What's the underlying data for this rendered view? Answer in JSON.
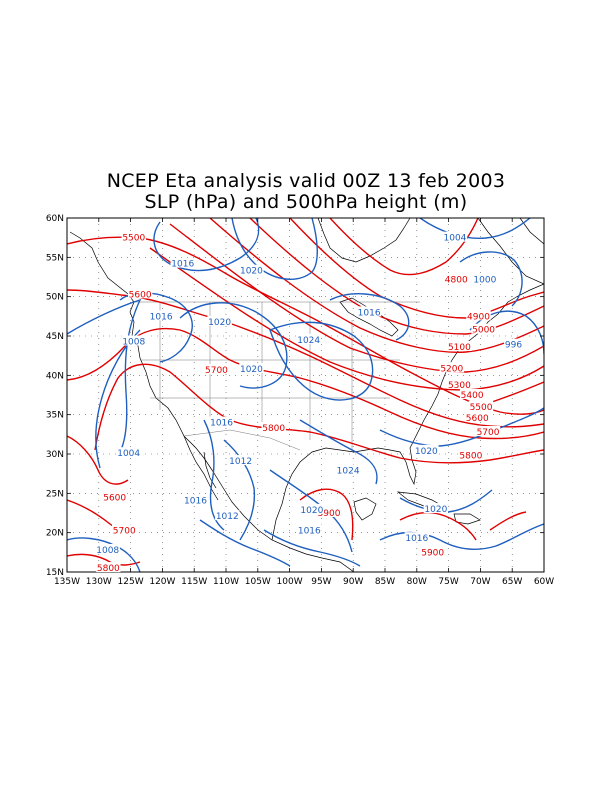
{
  "title": {
    "line1": "NCEP Eta analysis valid 00Z 13 feb 2003",
    "line2": "SLP (hPa) and 500hPa height (m)"
  },
  "colors": {
    "height_contour": "#e00000",
    "slp_contour": "#1f5fbf",
    "coastline": "#000000"
  },
  "chart_data": {
    "type": "contour-map",
    "grid": true,
    "x_range_deg": [
      -135,
      -60
    ],
    "y_range_deg": [
      15,
      60
    ],
    "x_ticks": [
      "135W",
      "130W",
      "125W",
      "120W",
      "115W",
      "110W",
      "105W",
      "100W",
      "95W",
      "90W",
      "85W",
      "80W",
      "75W",
      "70W",
      "65W",
      "60W"
    ],
    "y_ticks": [
      "15N",
      "20N",
      "25N",
      "30N",
      "35N",
      "40N",
      "45N",
      "50N",
      "55N",
      "60N"
    ],
    "height_labels": [
      {
        "text": "5500",
        "lon": -124.5,
        "lat": 57.5
      },
      {
        "text": "5600",
        "lon": -123.5,
        "lat": 50.3
      },
      {
        "text": "5700",
        "lon": -111.5,
        "lat": 40.7
      },
      {
        "text": "5800",
        "lon": -102.5,
        "lat": 33.3
      },
      {
        "text": "5600",
        "lon": -127.5,
        "lat": 24.5
      },
      {
        "text": "5700",
        "lon": -126.0,
        "lat": 20.3
      },
      {
        "text": "5800",
        "lon": -128.5,
        "lat": 15.5
      },
      {
        "text": "5900",
        "lon": -93.8,
        "lat": 22.5
      },
      {
        "text": "5900",
        "lon": -77.5,
        "lat": 17.5
      },
      {
        "text": "4800",
        "lon": -73.8,
        "lat": 52.2
      },
      {
        "text": "4900",
        "lon": -70.3,
        "lat": 47.5
      },
      {
        "text": "5000",
        "lon": -69.5,
        "lat": 45.8
      },
      {
        "text": "5100",
        "lon": -73.3,
        "lat": 43.6
      },
      {
        "text": "5200",
        "lon": -74.5,
        "lat": 40.9
      },
      {
        "text": "5300",
        "lon": -73.3,
        "lat": 38.8
      },
      {
        "text": "5400",
        "lon": -71.3,
        "lat": 37.5
      },
      {
        "text": "5500",
        "lon": -69.9,
        "lat": 36.0
      },
      {
        "text": "5600",
        "lon": -70.5,
        "lat": 34.6
      },
      {
        "text": "5700",
        "lon": -68.8,
        "lat": 32.8
      },
      {
        "text": "5800",
        "lon": -71.5,
        "lat": 29.8
      }
    ],
    "slp_labels": [
      {
        "text": "1016",
        "lon": -116.8,
        "lat": 54.2
      },
      {
        "text": "1020",
        "lon": -106.0,
        "lat": 53.3
      },
      {
        "text": "1016",
        "lon": -120.2,
        "lat": 47.5
      },
      {
        "text": "1020",
        "lon": -111.0,
        "lat": 46.8
      },
      {
        "text": "1008",
        "lon": -124.5,
        "lat": 44.3
      },
      {
        "text": "1024",
        "lon": -97.0,
        "lat": 44.5
      },
      {
        "text": "1020",
        "lon": -106.0,
        "lat": 40.8
      },
      {
        "text": "1016",
        "lon": -87.5,
        "lat": 48.0
      },
      {
        "text": "1004",
        "lon": -74.0,
        "lat": 57.5
      },
      {
        "text": "1000",
        "lon": -69.3,
        "lat": 52.2
      },
      {
        "text": "996",
        "lon": -64.8,
        "lat": 43.9
      },
      {
        "text": "1016",
        "lon": -110.7,
        "lat": 34.0
      },
      {
        "text": "1004",
        "lon": -125.3,
        "lat": 30.1
      },
      {
        "text": "1012",
        "lon": -107.7,
        "lat": 29.1
      },
      {
        "text": "1024",
        "lon": -90.8,
        "lat": 27.9
      },
      {
        "text": "1020",
        "lon": -78.5,
        "lat": 30.4
      },
      {
        "text": "1016",
        "lon": -114.8,
        "lat": 24.1
      },
      {
        "text": "1012",
        "lon": -109.8,
        "lat": 22.1
      },
      {
        "text": "1020",
        "lon": -96.5,
        "lat": 22.9
      },
      {
        "text": "1016",
        "lon": -96.9,
        "lat": 20.3
      },
      {
        "text": "1008",
        "lon": -128.6,
        "lat": 17.8
      },
      {
        "text": "1020",
        "lon": -77.0,
        "lat": 23.0
      },
      {
        "text": "1016",
        "lon": -80.0,
        "lat": 19.3
      }
    ]
  }
}
